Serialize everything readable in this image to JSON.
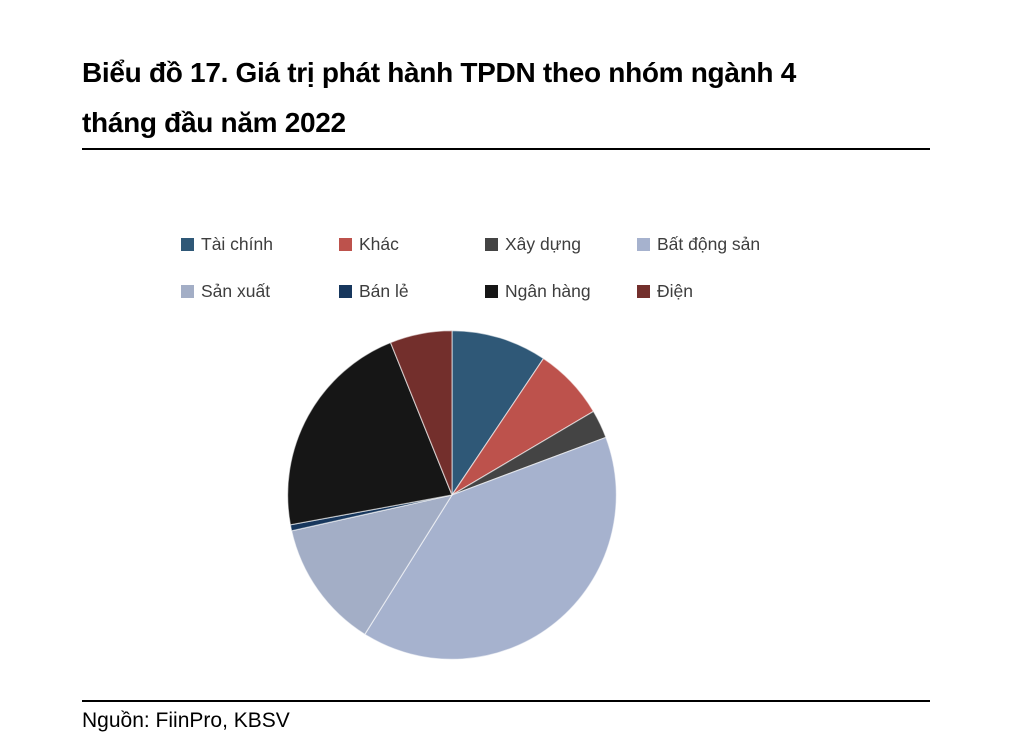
{
  "header": {
    "title_line1": "Biểu đồ 17. Giá trị phát hành TPDN theo nhóm ngành 4",
    "title_line2": "tháng đầu năm 2022"
  },
  "footer": {
    "source": "Nguồn: FiinPro, KBSV"
  },
  "chart_data": {
    "type": "pie",
    "title": "Biểu đồ 17. Giá trị phát hành TPDN theo nhóm ngành 4 tháng đầu năm 2022",
    "source": "Nguồn: FiinPro, KBSV",
    "categories": [
      "Tài chính",
      "Khác",
      "Xây dựng",
      "Bất động sản",
      "Sản xuất",
      "Bán lẻ",
      "Ngân hàng",
      "Điện"
    ],
    "values": [
      9.4,
      7.1,
      2.8,
      39.6,
      12.6,
      0.6,
      21.8,
      6.1
    ],
    "values_unit": "percent of total (estimated from slice angles; no data labels shown in figure)",
    "colors": [
      "#2F5877",
      "#BD524C",
      "#444444",
      "#A6B2CE",
      "#A3AEC6",
      "#17375D",
      "#161616",
      "#732F2C"
    ],
    "slugs": [
      "tai-chinh",
      "khac",
      "xay-dung",
      "bat-dong-san",
      "san-xuat",
      "ban-le",
      "ngan-hang",
      "dien"
    ],
    "start_angle_deg": 0,
    "direction": "clockwise",
    "legend_position": "top",
    "legend_rows": 2
  }
}
